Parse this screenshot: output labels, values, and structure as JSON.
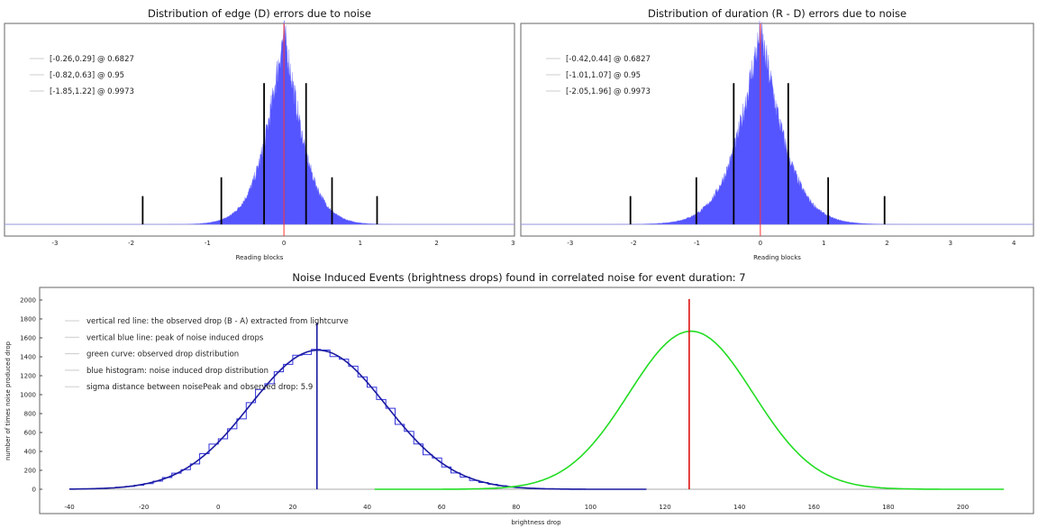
{
  "chart_data": [
    {
      "type": "bar",
      "title": "Distribution of edge (D) errors due to noise",
      "xlabel": "Reading blocks",
      "ylabel": "",
      "xlim": [
        -3.66,
        3.02
      ],
      "xticks": [
        "-3",
        "-2",
        "-1",
        "0",
        "1",
        "2",
        "3"
      ],
      "xtick_values": [
        -3,
        -2,
        -1,
        0,
        1,
        2,
        3
      ],
      "histogram": {
        "color": "#5555ff",
        "center": 0.0,
        "scale": 0.3,
        "peak": 1.0,
        "bin_width": 0.006
      },
      "reference_line": {
        "x": 0,
        "color": "#ff3333"
      },
      "legend": [
        "[-0.26,0.29] @ 0.6827",
        "[-0.82,0.63] @ 0.95",
        "[-1.85,1.22] @ 0.9973"
      ],
      "intervals": [
        {
          "low": -0.26,
          "high": 0.29,
          "level": 0.6827,
          "marker_height": 0.75
        },
        {
          "low": -0.82,
          "high": 0.63,
          "level": 0.95,
          "marker_height": 0.25
        },
        {
          "low": -1.85,
          "high": 1.22,
          "level": 0.9973,
          "marker_height": 0.15
        }
      ]
    },
    {
      "type": "bar",
      "title": "Distribution of duration (R - D) errors due to noise",
      "xlabel": "Reading blocks",
      "ylabel": "",
      "xlim": [
        -3.78,
        4.31
      ],
      "xticks": [
        "-3",
        "-2",
        "-1",
        "0",
        "1",
        "2",
        "3",
        "4"
      ],
      "xtick_values": [
        -3,
        -2,
        -1,
        0,
        1,
        2,
        3,
        4
      ],
      "histogram": {
        "color": "#5555ff",
        "center": 0.0,
        "scale": 0.45,
        "peak": 1.0,
        "bin_width": 0.008
      },
      "reference_line": {
        "x": 0,
        "color": "#ff3333"
      },
      "legend": [
        "[-0.42,0.44] @ 0.6827",
        "[-1.01,1.07] @ 0.95",
        "[-2.05,1.96] @ 0.9973"
      ],
      "intervals": [
        {
          "low": -0.42,
          "high": 0.44,
          "level": 0.6827,
          "marker_height": 0.75
        },
        {
          "low": -1.01,
          "high": 1.07,
          "level": 0.95,
          "marker_height": 0.25
        },
        {
          "low": -2.05,
          "high": 1.96,
          "level": 0.9973,
          "marker_height": 0.15
        }
      ]
    },
    {
      "type": "line",
      "title": "Noise Induced Events (brightness drops) found in correlated noise for event duration: 7",
      "xlabel": "brightness drop",
      "ylabel": "number of times noise produced drop",
      "xlim": [
        -48,
        219
      ],
      "ylim": [
        -257,
        2133
      ],
      "xticks": [
        "-40",
        "-20",
        "0",
        "20",
        "40",
        "60",
        "80",
        "100",
        "120",
        "140",
        "160",
        "180",
        "200"
      ],
      "xtick_values": [
        -40,
        -20,
        0,
        20,
        40,
        60,
        80,
        100,
        120,
        140,
        160,
        180,
        200
      ],
      "yticks": [
        "0",
        "200",
        "400",
        "600",
        "800",
        "1000",
        "1200",
        "1400",
        "1600",
        "1800",
        "2000"
      ],
      "ytick_values": [
        0,
        200,
        400,
        600,
        800,
        1000,
        1200,
        1400,
        1600,
        1800,
        2000
      ],
      "legend": [
        "vertical red line: the observed drop (B - A) extracted from lightcurve",
        "vertical blue line: peak of noise induced drops",
        "green curve: observed drop distribution",
        "blue histogram: noise induced drop distribution",
        "sigma distance between noisePeak and observed drop: 5.9"
      ],
      "noise_fit": {
        "color": "#1a1aa0",
        "mean": 26.8,
        "sigma": 18.2,
        "peak": 1470,
        "x_range": [
          -40,
          115
        ]
      },
      "noise_histogram": {
        "color": "#3333dd",
        "bin_width": 2.5,
        "x_range": [
          -40,
          115
        ]
      },
      "observed_curve": {
        "color": "#22dd22",
        "mean": 127,
        "sigma": 16.7,
        "peak": 1670,
        "x_range": [
          42,
          211
        ]
      },
      "baseline": {
        "color": "#aaaaaa",
        "x_range": [
          -40,
          211
        ]
      },
      "observed_drop_line": {
        "x": 126.5,
        "top": 2010,
        "color": "#dd1111"
      },
      "noise_peak_line": {
        "x": 26.5,
        "top": 1760,
        "color": "#1a1aa0"
      }
    }
  ]
}
